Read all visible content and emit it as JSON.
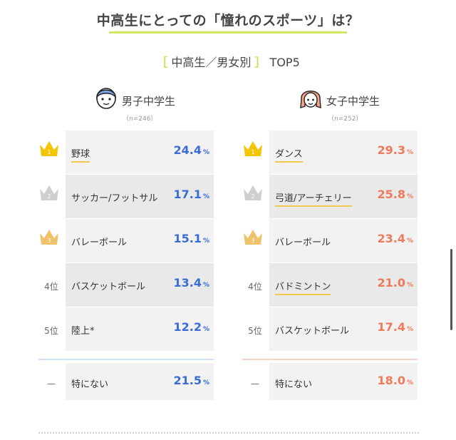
{
  "title": "中高生にとっての「憧れのスポーツ」は？",
  "subtitle": {
    "open": "［",
    "text": " 中高生／男女別 ",
    "close": "］",
    "suffix": " TOP5"
  },
  "colors": {
    "accent": "#cfe76a",
    "boys": "#3b6bd6",
    "girls": "#ef7a5a",
    "gold": "#f5c400",
    "silver": "#c9c9c9",
    "bronze": "#f0c36a"
  },
  "chart_data": [
    {
      "type": "table",
      "group": "男子中学生",
      "n": "（n=246）",
      "ranks": [
        "1",
        "2",
        "3",
        "4位",
        "5位",
        "—"
      ],
      "categories": [
        "野球",
        "サッカー/フットサル",
        "バレーボール",
        "バスケットボール",
        "陸上*",
        "特にない"
      ],
      "values": [
        24.4,
        17.1,
        15.1,
        13.4,
        12.2,
        21.5
      ],
      "unit": "%"
    },
    {
      "type": "table",
      "group": "女子中学生",
      "n": "（n=252）",
      "ranks": [
        "1",
        "2",
        "3",
        "4位",
        "5位",
        "—"
      ],
      "categories": [
        "ダンス",
        "弓道/アーチェリー",
        "バレーボール",
        "バドミントン",
        "バスケットボール",
        "特にない"
      ],
      "values": [
        29.3,
        25.8,
        23.4,
        21.0,
        17.4,
        18.0
      ],
      "unit": "%"
    }
  ],
  "boys": {
    "group": "男子中学生",
    "n": "（n=246）",
    "rows": [
      {
        "rank": "1",
        "label": "野球",
        "value": "24.4"
      },
      {
        "rank": "2",
        "label": "サッカー/フットサル",
        "value": "17.1"
      },
      {
        "rank": "3",
        "label": "バレーボール",
        "value": "15.1"
      },
      {
        "rank": "4位",
        "label": "バスケットボール",
        "value": "13.4"
      },
      {
        "rank": "5位",
        "label": "陸上*",
        "value": "12.2"
      },
      {
        "rank": "—",
        "label": "特にない",
        "value": "21.5"
      }
    ]
  },
  "girls": {
    "group": "女子中学生",
    "n": "（n=252）",
    "rows": [
      {
        "rank": "1",
        "label": "ダンス",
        "value": "29.3"
      },
      {
        "rank": "2",
        "label": "弓道/アーチェリー",
        "value": "25.8"
      },
      {
        "rank": "3",
        "label": "バレーボール",
        "value": "23.4"
      },
      {
        "rank": "4位",
        "label": "バドミントン",
        "value": "21.0"
      },
      {
        "rank": "5位",
        "label": "バスケットボール",
        "value": "17.4"
      },
      {
        "rank": "—",
        "label": "特にない",
        "value": "18.0"
      }
    ]
  },
  "pct": "%"
}
